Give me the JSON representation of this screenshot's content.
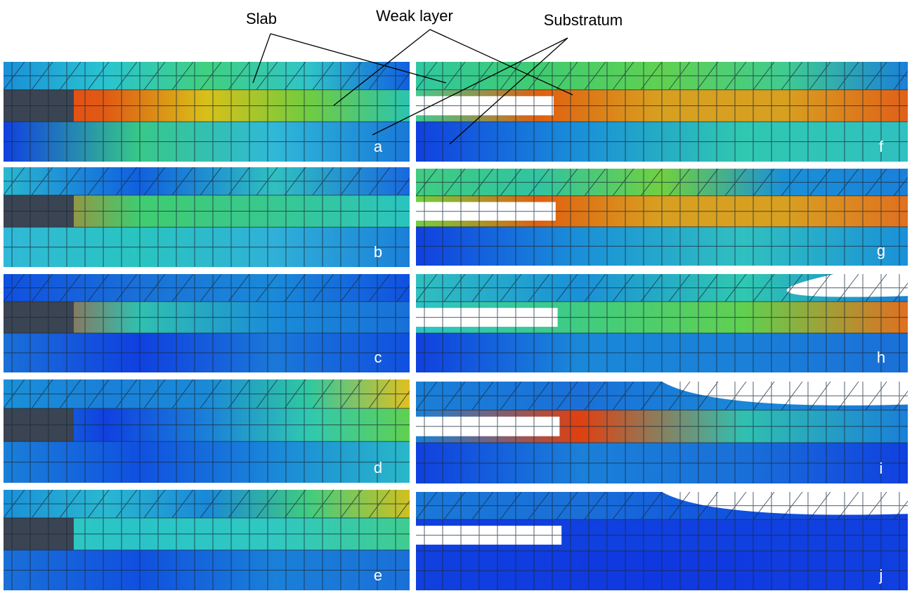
{
  "annotations": [
    "Slab",
    "Weak layer",
    "Substratum"
  ],
  "panels": [
    {
      "label": "a"
    },
    {
      "label": "b"
    },
    {
      "label": "c"
    },
    {
      "label": "d"
    },
    {
      "label": "e"
    },
    {
      "label": "f"
    },
    {
      "label": "g"
    },
    {
      "label": "h"
    },
    {
      "label": "i"
    },
    {
      "label": "j"
    }
  ]
}
